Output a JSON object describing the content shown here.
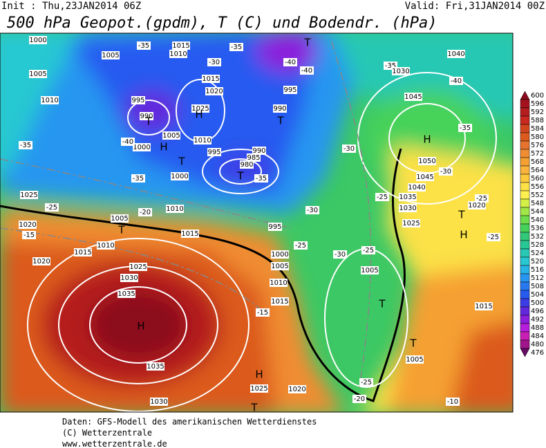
{
  "header": {
    "init": "Init : Thu,23JAN2014 06Z",
    "valid": "Valid: Fri,31JAN2014 00Z",
    "title": "500 hPa Geopot.(gpdm), T (C) und Bodendr. (hPa)"
  },
  "footer": {
    "lines": [
      "Daten: GFS-Modell des amerikanischen Wetterdienstes",
      "(C) Wetterzentrale",
      "www.wetterzentrale.de"
    ]
  },
  "colorbar": {
    "labels": [
      600,
      596,
      592,
      588,
      584,
      580,
      576,
      572,
      568,
      564,
      560,
      556,
      552,
      548,
      544,
      540,
      536,
      532,
      528,
      524,
      520,
      516,
      512,
      508,
      504,
      500,
      496,
      492,
      488,
      484,
      480,
      476
    ],
    "colors": [
      "#8c0a1e",
      "#a3121e",
      "#b51e1e",
      "#c8281e",
      "#d2461e",
      "#dc5a1e",
      "#e6732d",
      "#f08c32",
      "#f5a032",
      "#fab43c",
      "#fcc83c",
      "#fce146",
      "#fff050",
      "#d2f046",
      "#a0e646",
      "#6edc4b",
      "#46d25a",
      "#32c878",
      "#28c896",
      "#28c8b4",
      "#28c8d2",
      "#28b4e6",
      "#2896f0",
      "#2878f0",
      "#285af0",
      "#3c3ce6",
      "#6428dc",
      "#8c1edc",
      "#b41edc",
      "#c81eb4",
      "#a0148c",
      "#640a64"
    ]
  },
  "map_labels": [
    "1000",
    "1005",
    "1010",
    "1015",
    "-35",
    "-35",
    "1005",
    "1010",
    "995",
    "990",
    "T",
    "-30",
    "1015",
    "1020",
    "1025",
    "H",
    "995",
    "990",
    "T",
    "-40",
    "-40",
    "1005",
    "1010",
    "995",
    "T",
    "1000",
    "H",
    "-40",
    "-35",
    "990",
    "985",
    "980",
    "T",
    "-35",
    "1000",
    "-35",
    "1025",
    "-25",
    "-20",
    "1010",
    "1020",
    "1005",
    "T",
    "-15",
    "1015",
    "1010",
    "1015",
    "1020",
    "995",
    "-30",
    "1000",
    "1005",
    "1010",
    "1015",
    "1025",
    "1030",
    "1035",
    "H",
    "1035",
    "1030",
    "-15",
    "H",
    "1025",
    "1020",
    "T",
    "-25",
    "-20",
    "T",
    "T",
    "1005",
    "1015",
    "-10",
    "1005",
    "-30",
    "-25",
    "-25",
    "-30",
    "-25",
    "1040",
    "-35",
    "1030",
    "-40",
    "1045",
    "-35",
    "H",
    "1050",
    "-30",
    "1045",
    "1040",
    "1035",
    "1030",
    "1025",
    "T",
    "H",
    "1020",
    "-25",
    "-25",
    "T"
  ]
}
